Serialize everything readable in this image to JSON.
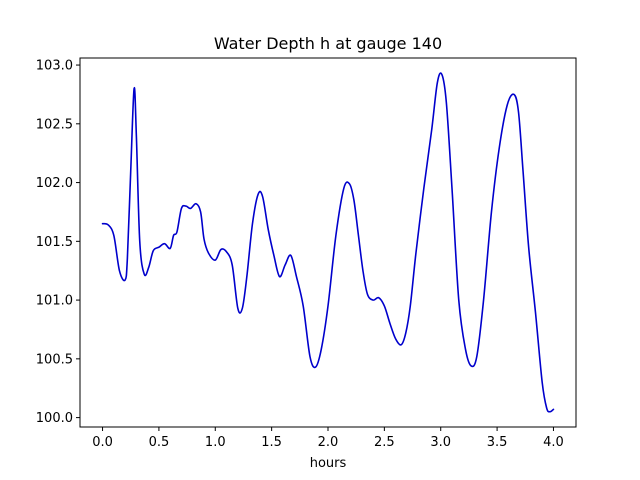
{
  "chart_data": {
    "type": "line",
    "title": "Water Depth h at gauge 140",
    "xlabel": "hours",
    "ylabel": "",
    "xlim": [
      -0.2,
      4.2
    ],
    "ylim": [
      99.92,
      103.06
    ],
    "xticks": [
      0.0,
      0.5,
      1.0,
      1.5,
      2.0,
      2.5,
      3.0,
      3.5,
      4.0
    ],
    "xtick_labels": [
      "0.0",
      "0.5",
      "1.0",
      "1.5",
      "2.0",
      "2.5",
      "3.0",
      "3.5",
      "4.0"
    ],
    "yticks": [
      100.0,
      100.5,
      101.0,
      101.5,
      102.0,
      102.5,
      103.0
    ],
    "ytick_labels": [
      "100.0",
      "100.5",
      "101.0",
      "101.5",
      "102.0",
      "102.5",
      "103.0"
    ],
    "grid": false,
    "legend": "none",
    "series": [
      {
        "color": "#0000cc",
        "x": [
          0.0,
          0.05,
          0.1,
          0.15,
          0.2,
          0.22,
          0.25,
          0.28,
          0.3,
          0.33,
          0.37,
          0.41,
          0.45,
          0.5,
          0.55,
          0.6,
          0.63,
          0.66,
          0.7,
          0.74,
          0.78,
          0.83,
          0.87,
          0.9,
          0.94,
          1.0,
          1.05,
          1.1,
          1.15,
          1.2,
          1.24,
          1.28,
          1.33,
          1.38,
          1.42,
          1.47,
          1.52,
          1.57,
          1.62,
          1.67,
          1.72,
          1.78,
          1.84,
          1.89,
          1.94,
          2.0,
          2.07,
          2.14,
          2.19,
          2.23,
          2.27,
          2.31,
          2.35,
          2.4,
          2.45,
          2.5,
          2.55,
          2.6,
          2.65,
          2.69,
          2.73,
          2.78,
          2.85,
          2.92,
          2.97,
          3.01,
          3.05,
          3.1,
          3.16,
          3.22,
          3.27,
          3.32,
          3.38,
          3.45,
          3.52,
          3.59,
          3.65,
          3.69,
          3.73,
          3.78,
          3.84,
          3.9,
          3.94,
          3.97,
          4.0
        ],
        "y": [
          101.65,
          101.64,
          101.55,
          101.25,
          101.17,
          101.35,
          102.1,
          102.8,
          102.4,
          101.5,
          101.22,
          101.28,
          101.42,
          101.45,
          101.48,
          101.44,
          101.55,
          101.58,
          101.78,
          101.8,
          101.78,
          101.82,
          101.75,
          101.52,
          101.4,
          101.34,
          101.43,
          101.41,
          101.3,
          100.93,
          100.93,
          101.2,
          101.65,
          101.9,
          101.88,
          101.6,
          101.38,
          101.2,
          101.3,
          101.38,
          101.2,
          100.95,
          100.52,
          100.43,
          100.58,
          100.95,
          101.55,
          101.95,
          101.99,
          101.85,
          101.55,
          101.25,
          101.05,
          101.0,
          101.02,
          100.95,
          100.8,
          100.67,
          100.62,
          100.72,
          100.95,
          101.4,
          101.95,
          102.45,
          102.85,
          102.92,
          102.68,
          101.95,
          101.0,
          100.58,
          100.44,
          100.52,
          101.0,
          101.75,
          102.3,
          102.66,
          102.75,
          102.6,
          102.1,
          101.45,
          100.9,
          100.3,
          100.08,
          100.05,
          100.07
        ]
      }
    ]
  }
}
